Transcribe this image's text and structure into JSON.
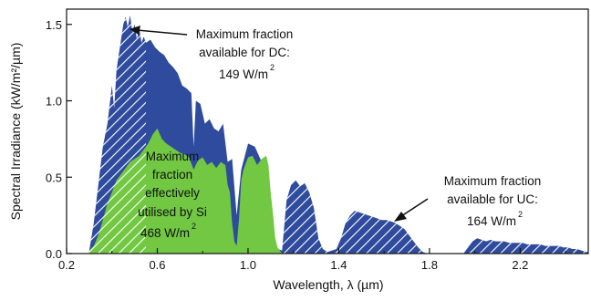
{
  "chart_data": {
    "type": "area",
    "title": "",
    "xlabel": "Wavelength, λ (µm)",
    "ylabel": "Spectral Irradiance (kW/m²/µm)",
    "xlim": [
      0.2,
      2.5
    ],
    "ylim": [
      0,
      1.6
    ],
    "x_ticks": [
      0.2,
      0.6,
      1.0,
      1.4,
      1.8,
      2.2
    ],
    "x_tick_labels": [
      "0.2",
      "0.6",
      "1.0",
      "1.4",
      "1.8",
      "2.2"
    ],
    "y_ticks": [
      0,
      0.5,
      1.0,
      1.5
    ],
    "y_tick_labels": [
      "0.0",
      "0.5",
      "1.0",
      "1.5"
    ],
    "grid": false,
    "legend": "none",
    "regions": {
      "dc_hatched": {
        "x_range": [
          0.3,
          0.55
        ]
      },
      "si_green_cut": 1.15,
      "uc_hatched": {
        "x_range": [
          1.15,
          2.5
        ]
      }
    },
    "series": [
      {
        "x": [
          0.3,
          0.32,
          0.34,
          0.36,
          0.38,
          0.4,
          0.41,
          0.42,
          0.43,
          0.44,
          0.45,
          0.46,
          0.47,
          0.48,
          0.49,
          0.5,
          0.51,
          0.52,
          0.53,
          0.54,
          0.55,
          0.57,
          0.59,
          0.61,
          0.63,
          0.65,
          0.67,
          0.69,
          0.71,
          0.73,
          0.75,
          0.76,
          0.77,
          0.79,
          0.81,
          0.83,
          0.85,
          0.87,
          0.89,
          0.91,
          0.93,
          0.95,
          0.97,
          1.0,
          1.03,
          1.06,
          1.08,
          1.1,
          1.12,
          1.13,
          1.15,
          1.17,
          1.19,
          1.21,
          1.23,
          1.25,
          1.27,
          1.29,
          1.31,
          1.33,
          1.35,
          1.37,
          1.39,
          1.41,
          1.43,
          1.45,
          1.47,
          1.49,
          1.51,
          1.53,
          1.55,
          1.57,
          1.59,
          1.61,
          1.63,
          1.65,
          1.67,
          1.69,
          1.71,
          1.73,
          1.75,
          1.77,
          1.79,
          1.81,
          1.83,
          1.85,
          1.87,
          1.89,
          1.91,
          1.93,
          1.95,
          1.97,
          1.99,
          2.01,
          2.03,
          2.05,
          2.07,
          2.09,
          2.11,
          2.13,
          2.15,
          2.17,
          2.19,
          2.21,
          2.23,
          2.25,
          2.27,
          2.29,
          2.31,
          2.33,
          2.35,
          2.37,
          2.39,
          2.41,
          2.43,
          2.45,
          2.47,
          2.49,
          2.5
        ],
        "values": [
          0.02,
          0.2,
          0.45,
          0.7,
          0.85,
          1.1,
          0.95,
          1.2,
          1.3,
          1.4,
          1.5,
          1.55,
          1.48,
          1.56,
          1.45,
          1.5,
          1.4,
          1.48,
          1.38,
          1.42,
          1.38,
          1.4,
          1.35,
          1.32,
          1.3,
          1.25,
          1.22,
          1.18,
          1.1,
          1.08,
          1.05,
          0.7,
          1.0,
          0.98,
          0.85,
          0.88,
          0.82,
          0.8,
          0.85,
          0.6,
          0.62,
          0.25,
          0.55,
          0.72,
          0.7,
          0.6,
          0.4,
          0.2,
          0.05,
          0.03,
          0.02,
          0.35,
          0.45,
          0.48,
          0.44,
          0.46,
          0.4,
          0.3,
          0.1,
          0.03,
          0.01,
          0.02,
          0.03,
          0.1,
          0.2,
          0.25,
          0.28,
          0.27,
          0.26,
          0.25,
          0.24,
          0.23,
          0.22,
          0.22,
          0.21,
          0.2,
          0.18,
          0.16,
          0.12,
          0.08,
          0.04,
          0.01,
          0.0,
          0.0,
          0.0,
          0.0,
          0.0,
          0.0,
          0.0,
          0.0,
          0.0,
          0.04,
          0.08,
          0.1,
          0.09,
          0.08,
          0.09,
          0.08,
          0.08,
          0.08,
          0.07,
          0.07,
          0.07,
          0.07,
          0.06,
          0.06,
          0.06,
          0.06,
          0.05,
          0.05,
          0.05,
          0.05,
          0.04,
          0.04,
          0.03,
          0.03,
          0.02,
          0.01,
          0.01
        ]
      },
      {
        "x": [
          0.3,
          0.32,
          0.34,
          0.36,
          0.38,
          0.4,
          0.42,
          0.44,
          0.46,
          0.48,
          0.5,
          0.52,
          0.54,
          0.56,
          0.58,
          0.6,
          0.62,
          0.64,
          0.66,
          0.68,
          0.7,
          0.72,
          0.74,
          0.76,
          0.78,
          0.8,
          0.82,
          0.84,
          0.86,
          0.88,
          0.9,
          0.91,
          0.92,
          0.93,
          0.94,
          0.95,
          0.96,
          0.97,
          0.98,
          1.0,
          1.02,
          1.04,
          1.06,
          1.08,
          1.09,
          1.1,
          1.11,
          1.12,
          1.13,
          1.14,
          1.15
        ],
        "values": [
          0.02,
          0.05,
          0.12,
          0.22,
          0.33,
          0.4,
          0.48,
          0.52,
          0.56,
          0.6,
          0.62,
          0.64,
          0.68,
          0.72,
          0.78,
          0.82,
          0.75,
          0.72,
          0.7,
          0.68,
          0.66,
          0.65,
          0.63,
          0.55,
          0.61,
          0.63,
          0.58,
          0.6,
          0.56,
          0.6,
          0.58,
          0.45,
          0.4,
          0.2,
          0.08,
          0.05,
          0.22,
          0.48,
          0.55,
          0.63,
          0.64,
          0.58,
          0.62,
          0.64,
          0.58,
          0.4,
          0.26,
          0.1,
          0.04,
          0.02,
          0.0
        ]
      }
    ],
    "annotations": [
      {
        "lines": [
          "Maximum fraction",
          "available for DC:",
          "149 W/m",
          "2"
        ]
      },
      {
        "lines": [
          "Maximum",
          "fraction",
          "effectively",
          "utilised by Si",
          "468 W/m",
          "2"
        ]
      },
      {
        "lines": [
          "Maximum fraction",
          "available for UC:",
          "164 W/m",
          "2"
        ]
      }
    ],
    "colors": {
      "total_spectrum": "#2f4b9e",
      "silicon_used": "#72c842",
      "hatch": "#ffffff",
      "axis": "#111111"
    }
  }
}
